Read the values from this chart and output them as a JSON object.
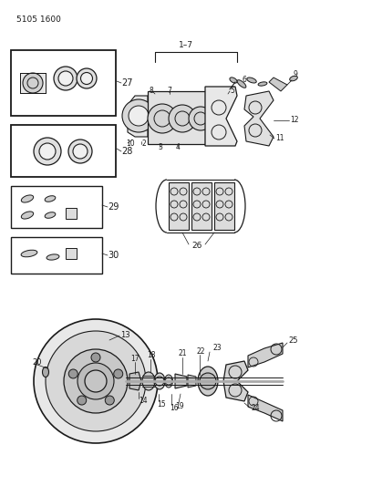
{
  "bg_color": "#ffffff",
  "line_color": "#1a1a1a",
  "text_color": "#1a1a1a",
  "figsize": [
    4.08,
    5.33
  ],
  "dpi": 100,
  "part_id": "5105 1600"
}
